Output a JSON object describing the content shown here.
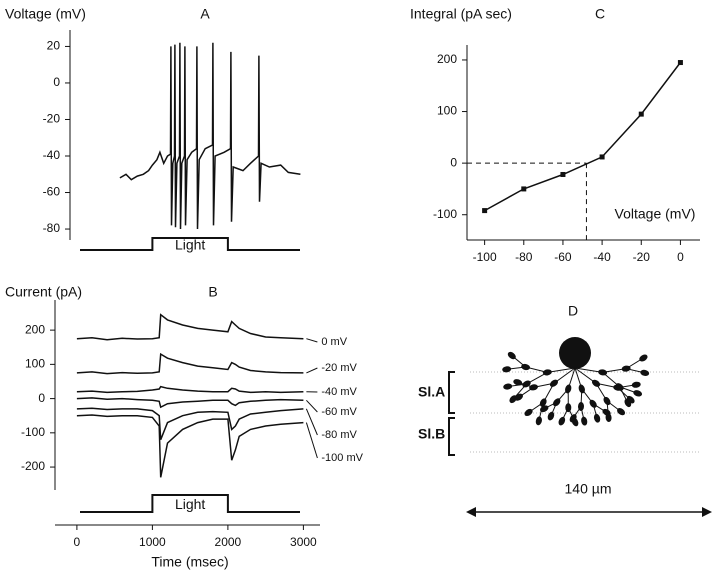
{
  "chart_data": [
    {
      "type": "line",
      "panel": "A",
      "y_label": "Voltage (mV)",
      "xlim": [
        -290,
        3220
      ],
      "ylim": [
        -86,
        29
      ],
      "yticks": [
        20,
        0,
        -20,
        -40,
        -60,
        -80
      ],
      "x": [
        570,
        650,
        720,
        800,
        880,
        950,
        1000,
        1060,
        1100,
        1150,
        1200,
        1240,
        1245,
        1253,
        1270,
        1293,
        1298,
        1306,
        1325,
        1359,
        1364,
        1372,
        1390,
        1425,
        1430,
        1438,
        1460,
        1520,
        1584,
        1589,
        1597,
        1620,
        1700,
        1796,
        1801,
        1809,
        1830,
        1950,
        2035,
        2040,
        2048,
        2070,
        2200,
        2300,
        2406,
        2411,
        2419,
        2440,
        2550,
        2700,
        2800,
        2960
      ],
      "series": [
        {
          "color": "#111111",
          "values": [
            -52,
            -50,
            -53,
            -51,
            -50,
            -48,
            -45,
            -42,
            -38,
            -44,
            -40,
            -39,
            20,
            -78,
            -44,
            -40,
            21,
            -79,
            -44,
            -40,
            22,
            -80,
            -44,
            -40,
            20,
            -78,
            -42,
            -38,
            -36,
            20,
            -80,
            -42,
            -36,
            -34,
            22,
            -78,
            -40,
            -38,
            -36,
            17,
            -76,
            -46,
            -48,
            -44,
            -40,
            15,
            -65,
            -44,
            -46,
            -45,
            -49,
            -50
          ]
        }
      ],
      "stimulus": {
        "label": "Light",
        "start": 1000,
        "end": 2000
      }
    },
    {
      "type": "line",
      "panel": "B",
      "y_label": "Current (pA)",
      "x_label": "Time (msec)",
      "xlim": [
        -290,
        3220
      ],
      "ylim": [
        -267,
        288
      ],
      "yticks": [
        200,
        100,
        0,
        -100,
        -200
      ],
      "xticks": [
        0,
        1000,
        2000,
        3000
      ],
      "x": [
        0,
        200,
        400,
        600,
        800,
        1000,
        1090,
        1110,
        1200,
        1400,
        1600,
        1800,
        2000,
        2050,
        2100,
        2150,
        2300,
        2500,
        2700,
        3000
      ],
      "series": [
        {
          "name": "0 mV",
          "color": "#111111",
          "values": [
            175,
            178,
            172,
            176,
            174,
            175,
            178,
            245,
            230,
            215,
            205,
            200,
            195,
            225,
            215,
            205,
            190,
            180,
            178,
            175
          ]
        },
        {
          "name": "-20 mV",
          "color": "#111111",
          "values": [
            75,
            78,
            73,
            76,
            74,
            75,
            78,
            130,
            118,
            105,
            95,
            90,
            85,
            105,
            100,
            92,
            82,
            78,
            76,
            75
          ]
        },
        {
          "name": "-40 mV",
          "color": "#111111",
          "values": [
            20,
            22,
            18,
            20,
            21,
            25,
            28,
            35,
            30,
            25,
            22,
            20,
            20,
            30,
            28,
            22,
            18,
            20,
            18,
            20
          ]
        },
        {
          "name": "-60 mV",
          "color": "#111111",
          "values": [
            0,
            2,
            -2,
            0,
            -3,
            -5,
            -8,
            -25,
            -15,
            -10,
            -8,
            -5,
            -5,
            -15,
            -20,
            -12,
            -8,
            -5,
            -3,
            -5
          ]
        },
        {
          "name": "-80 mV",
          "color": "#111111",
          "values": [
            -30,
            -28,
            -32,
            -30,
            -30,
            -35,
            -50,
            -120,
            -70,
            -50,
            -40,
            -38,
            -40,
            -90,
            -80,
            -60,
            -45,
            -40,
            -35,
            -30
          ]
        },
        {
          "name": "-100 mV",
          "color": "#111111",
          "values": [
            -50,
            -48,
            -52,
            -50,
            -50,
            -55,
            -80,
            -230,
            -130,
            -90,
            -70,
            -60,
            -60,
            -180,
            -150,
            -110,
            -90,
            -80,
            -75,
            -70
          ]
        }
      ],
      "stimulus": {
        "label": "Light",
        "start": 1000,
        "end": 2000
      }
    },
    {
      "type": "line",
      "panel": "C",
      "y_label": "Integral (pA sec)",
      "x_label": "Voltage (mV)",
      "markers": true,
      "xlim": [
        -109,
        10
      ],
      "ylim": [
        -149,
        229
      ],
      "yticks": [
        200,
        100,
        0,
        -100
      ],
      "xticks": [
        -100,
        -80,
        -60,
        -40,
        -20,
        0
      ],
      "x": [
        -100,
        -80,
        -60,
        -40,
        -20,
        0
      ],
      "series": [
        {
          "color": "#111111",
          "values": [
            -92,
            -50,
            -22,
            12,
            95,
            195
          ]
        }
      ],
      "reference": {
        "x": -48,
        "y": 0
      }
    }
  ],
  "panel_d": {
    "label": "D",
    "layers": [
      "Sl.A",
      "Sl.B"
    ],
    "scale_bar": "140 µm"
  }
}
